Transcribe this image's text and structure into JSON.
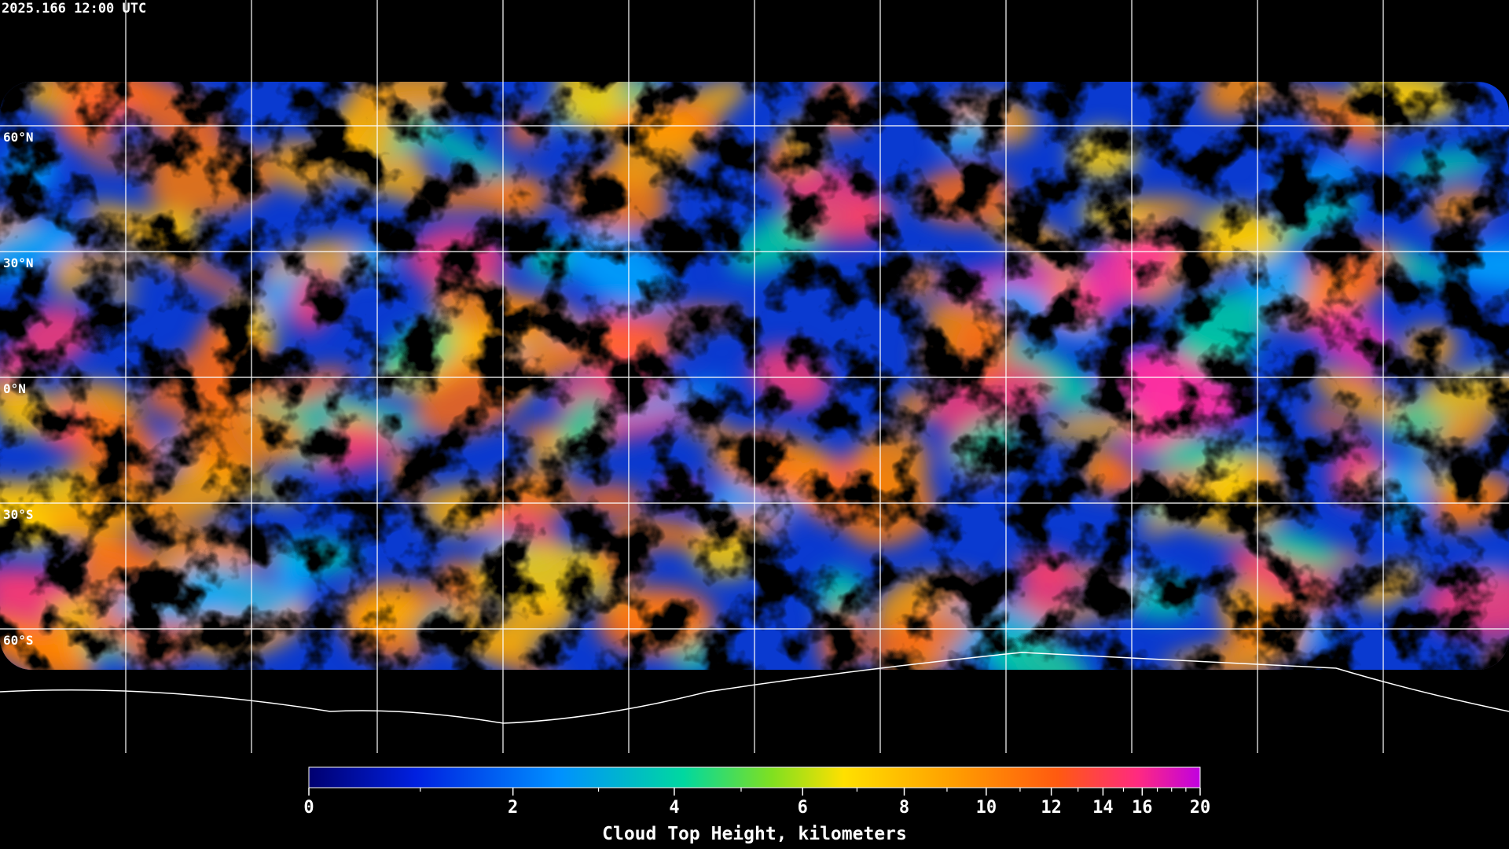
{
  "header": {
    "timestamp": "2025.166 12:00 UTC"
  },
  "map": {
    "latitude_labels": [
      "60°N",
      "30°N",
      "0°N",
      "30°S",
      "60°S"
    ]
  },
  "colorbar": {
    "ticks": [
      0,
      2,
      4,
      6,
      8,
      10,
      12,
      14,
      16,
      20
    ],
    "label": "Cloud Top Height, kilometers"
  }
}
